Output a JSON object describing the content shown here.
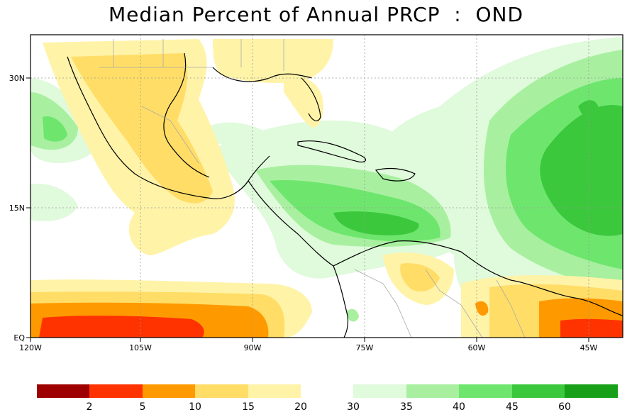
{
  "title": "Median Percent of Annual PRCP  :  OND",
  "axes": {
    "lon_ticks": [
      "120W",
      "105W",
      "90W",
      "75W",
      "60W",
      "45W"
    ],
    "lat_ticks": [
      "30N",
      "15N",
      "EQ"
    ]
  },
  "legend": {
    "labels": [
      "2",
      "5",
      "10",
      "15",
      "20",
      "30",
      "35",
      "40",
      "45",
      "60"
    ],
    "colors_dry": [
      "#9e0000",
      "#ff3300",
      "#ff9900",
      "#ffdd66",
      "#fff3a8"
    ],
    "colors_wet": [
      "#e0fadc",
      "#a8f0a0",
      "#6ee66e",
      "#3cc83c",
      "#18a018"
    ]
  },
  "colors": {
    "ocean": "#ffffff",
    "land_outline": "#000000",
    "borders": "#aaaaaa",
    "gridlines": "#999999"
  }
}
